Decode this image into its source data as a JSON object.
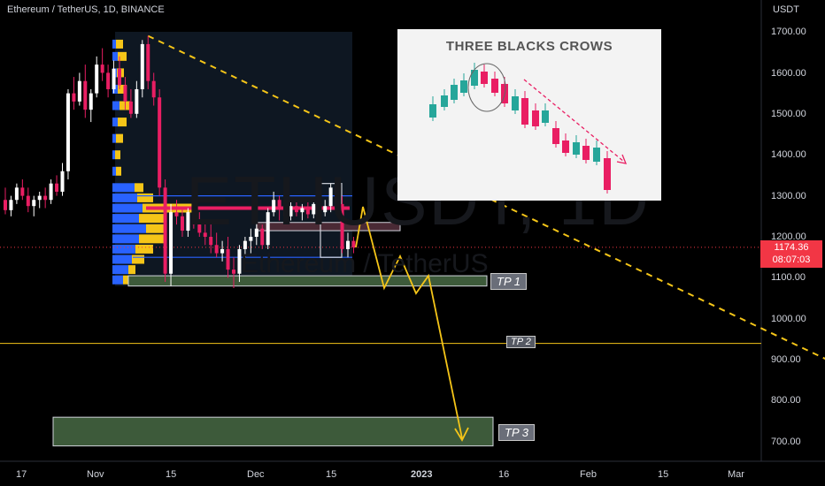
{
  "header": {
    "symbol_line": "Ethereum / TetherUS, 1D, BINANCE"
  },
  "watermark": {
    "ticker": "ETHUSDT, 1D",
    "name": "Ethereum / TetherUS"
  },
  "axis": {
    "unit": "USDT",
    "y_ticks": [
      "1700.00",
      "1600.00",
      "1500.00",
      "1400.00",
      "1300.00",
      "1200.00",
      "1100.00",
      "1000.00",
      "900.00",
      "800.00",
      "700.00"
    ],
    "x_ticks": [
      "17",
      "Nov",
      "15",
      "Dec",
      "15",
      "2023",
      "16",
      "Feb",
      "15",
      "Mar"
    ],
    "last_price": "1174.36",
    "countdown": "08:07:03"
  },
  "inset": {
    "title": "THREE BLACKS CROWS"
  },
  "targets": {
    "tp1": "TP 1",
    "tp2": "TP 2",
    "tp3": "TP 3"
  },
  "colors": {
    "up": "#ffffff",
    "down": "#e91e63",
    "trend": "#f5c518",
    "zone": "#3d5a3a",
    "profile_blue": "#2962ff",
    "profile_yellow": "#f5c518"
  },
  "chart_data": {
    "type": "candlestick",
    "ylim": [
      660,
      1760
    ],
    "y_scale": "linear",
    "candles": [
      {
        "o": 1290,
        "h": 1320,
        "l": 1255,
        "c": 1265
      },
      {
        "o": 1265,
        "h": 1300,
        "l": 1250,
        "c": 1290
      },
      {
        "o": 1290,
        "h": 1330,
        "l": 1280,
        "c": 1320
      },
      {
        "o": 1320,
        "h": 1340,
        "l": 1290,
        "c": 1300
      },
      {
        "o": 1300,
        "h": 1320,
        "l": 1260,
        "c": 1275
      },
      {
        "o": 1275,
        "h": 1300,
        "l": 1250,
        "c": 1290
      },
      {
        "o": 1290,
        "h": 1310,
        "l": 1270,
        "c": 1300
      },
      {
        "o": 1300,
        "h": 1320,
        "l": 1270,
        "c": 1290
      },
      {
        "o": 1290,
        "h": 1340,
        "l": 1280,
        "c": 1330
      },
      {
        "o": 1330,
        "h": 1350,
        "l": 1300,
        "c": 1310
      },
      {
        "o": 1310,
        "h": 1380,
        "l": 1300,
        "c": 1360
      },
      {
        "o": 1360,
        "h": 1560,
        "l": 1340,
        "c": 1550
      },
      {
        "o": 1550,
        "h": 1590,
        "l": 1510,
        "c": 1530
      },
      {
        "o": 1530,
        "h": 1600,
        "l": 1520,
        "c": 1580
      },
      {
        "o": 1580,
        "h": 1620,
        "l": 1490,
        "c": 1510
      },
      {
        "o": 1510,
        "h": 1560,
        "l": 1480,
        "c": 1550
      },
      {
        "o": 1550,
        "h": 1640,
        "l": 1540,
        "c": 1620
      },
      {
        "o": 1620,
        "h": 1660,
        "l": 1580,
        "c": 1600
      },
      {
        "o": 1600,
        "h": 1620,
        "l": 1540,
        "c": 1560
      },
      {
        "o": 1560,
        "h": 1630,
        "l": 1550,
        "c": 1610
      },
      {
        "o": 1610,
        "h": 1640,
        "l": 1560,
        "c": 1570
      },
      {
        "o": 1570,
        "h": 1590,
        "l": 1510,
        "c": 1530
      },
      {
        "o": 1530,
        "h": 1560,
        "l": 1490,
        "c": 1500
      },
      {
        "o": 1500,
        "h": 1580,
        "l": 1490,
        "c": 1560
      },
      {
        "o": 1560,
        "h": 1680,
        "l": 1540,
        "c": 1670
      },
      {
        "o": 1670,
        "h": 1690,
        "l": 1560,
        "c": 1580
      },
      {
        "o": 1580,
        "h": 1600,
        "l": 1520,
        "c": 1540
      },
      {
        "o": 1540,
        "h": 1560,
        "l": 1300,
        "c": 1320
      },
      {
        "o": 1320,
        "h": 1340,
        "l": 1090,
        "c": 1110
      },
      {
        "o": 1110,
        "h": 1280,
        "l": 1080,
        "c": 1260
      },
      {
        "o": 1260,
        "h": 1290,
        "l": 1230,
        "c": 1250
      },
      {
        "o": 1250,
        "h": 1270,
        "l": 1200,
        "c": 1215
      },
      {
        "o": 1215,
        "h": 1270,
        "l": 1200,
        "c": 1260
      },
      {
        "o": 1260,
        "h": 1280,
        "l": 1220,
        "c": 1230
      },
      {
        "o": 1230,
        "h": 1260,
        "l": 1200,
        "c": 1210
      },
      {
        "o": 1210,
        "h": 1240,
        "l": 1180,
        "c": 1200
      },
      {
        "o": 1200,
        "h": 1230,
        "l": 1160,
        "c": 1180
      },
      {
        "o": 1180,
        "h": 1210,
        "l": 1150,
        "c": 1160
      },
      {
        "o": 1160,
        "h": 1190,
        "l": 1140,
        "c": 1170
      },
      {
        "o": 1170,
        "h": 1200,
        "l": 1100,
        "c": 1120
      },
      {
        "o": 1120,
        "h": 1150,
        "l": 1075,
        "c": 1110
      },
      {
        "o": 1110,
        "h": 1180,
        "l": 1090,
        "c": 1170
      },
      {
        "o": 1170,
        "h": 1200,
        "l": 1150,
        "c": 1190
      },
      {
        "o": 1190,
        "h": 1220,
        "l": 1160,
        "c": 1200
      },
      {
        "o": 1200,
        "h": 1240,
        "l": 1180,
        "c": 1220
      },
      {
        "o": 1220,
        "h": 1230,
        "l": 1170,
        "c": 1180
      },
      {
        "o": 1180,
        "h": 1270,
        "l": 1170,
        "c": 1260
      },
      {
        "o": 1260,
        "h": 1310,
        "l": 1250,
        "c": 1290
      },
      {
        "o": 1290,
        "h": 1300,
        "l": 1240,
        "c": 1270
      },
      {
        "o": 1270,
        "h": 1290,
        "l": 1230,
        "c": 1250
      },
      {
        "o": 1250,
        "h": 1290,
        "l": 1240,
        "c": 1275
      },
      {
        "o": 1275,
        "h": 1295,
        "l": 1250,
        "c": 1260
      },
      {
        "o": 1260,
        "h": 1280,
        "l": 1240,
        "c": 1270
      },
      {
        "o": 1270,
        "h": 1285,
        "l": 1245,
        "c": 1255
      },
      {
        "o": 1255,
        "h": 1290,
        "l": 1245,
        "c": 1280
      },
      {
        "o": 1280,
        "h": 1300,
        "l": 1250,
        "c": 1260
      },
      {
        "o": 1260,
        "h": 1290,
        "l": 1250,
        "c": 1275
      },
      {
        "o": 1275,
        "h": 1330,
        "l": 1260,
        "c": 1320
      },
      {
        "o": 1320,
        "h": 1330,
        "l": 1260,
        "c": 1280
      },
      {
        "o": 1280,
        "h": 1300,
        "l": 1160,
        "c": 1170
      },
      {
        "o": 1170,
        "h": 1210,
        "l": 1150,
        "c": 1190
      },
      {
        "o": 1190,
        "h": 1200,
        "l": 1160,
        "c": 1174
      }
    ],
    "annotations": {
      "resistance_blue_upper": 1300,
      "resistance_blue_lower": 1150,
      "trend_line": {
        "from": {
          "candle": 25,
          "price": 1690
        },
        "to": {
          "candle": 147,
          "price": 880
        }
      },
      "tp1_level": 1095,
      "tp2_level": 940,
      "tp3_zone": [
        690,
        760
      ],
      "current_price": 1174.36
    }
  }
}
